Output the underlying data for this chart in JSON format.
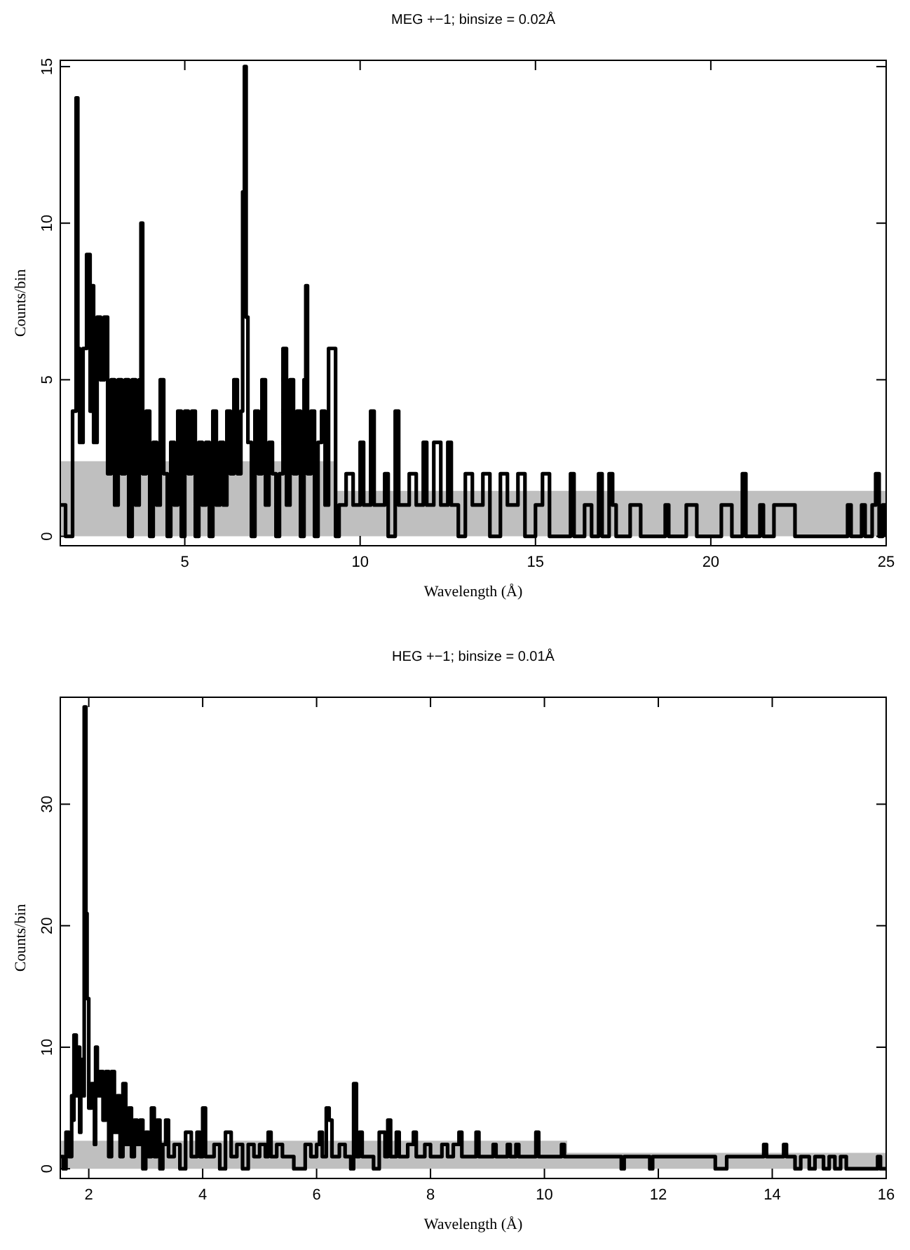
{
  "chart_data": [
    {
      "type": "step",
      "title": "MEG +−1; binsize = 0.02Å",
      "xlabel": "Wavelength (Å)",
      "ylabel": "Counts/bin",
      "xlim": [
        1.45,
        25
      ],
      "ylim": [
        -0.3,
        15.2
      ],
      "xticks": [
        5,
        10,
        15,
        20,
        25
      ],
      "yticks": [
        0,
        5,
        10,
        15
      ],
      "series": [
        {
          "type": "area",
          "color": "#bfbfbf",
          "x": [
            1.45,
            9.3,
            9.3,
            25
          ],
          "values": [
            2.4,
            2.4,
            1.45,
            1.45
          ]
        },
        {
          "color": "#000000",
          "x": [
            1.45,
            1.6,
            1.75,
            1.8,
            1.9,
            1.95,
            2.0,
            2.1,
            2.2,
            2.3,
            2.35,
            2.4,
            2.5,
            2.6,
            2.7,
            2.8,
            2.9,
            3.0,
            3.1,
            3.2,
            3.3,
            3.4,
            3.5,
            3.6,
            3.7,
            3.75,
            3.8,
            3.9,
            4.0,
            4.1,
            4.2,
            4.3,
            4.4,
            4.5,
            4.6,
            4.7,
            4.8,
            4.9,
            5.0,
            5.1,
            5.2,
            5.3,
            5.4,
            5.5,
            5.6,
            5.7,
            5.8,
            5.9,
            6.0,
            6.1,
            6.2,
            6.3,
            6.4,
            6.5,
            6.6,
            6.65,
            6.7,
            6.75,
            6.8,
            6.9,
            7.0,
            7.1,
            7.2,
            7.3,
            7.4,
            7.5,
            7.6,
            7.7,
            7.8,
            7.9,
            8.0,
            8.1,
            8.2,
            8.3,
            8.4,
            8.45,
            8.5,
            8.6,
            8.7,
            8.8,
            8.9,
            9.0,
            9.1,
            9.25,
            9.3,
            9.4,
            9.6,
            9.8,
            10.0,
            10.1,
            10.3,
            10.4,
            10.7,
            10.8,
            11.0,
            11.1,
            11.4,
            11.6,
            11.8,
            11.9,
            12.1,
            12.3,
            12.5,
            12.6,
            12.8,
            13.0,
            13.2,
            13.5,
            13.7,
            14.0,
            14.2,
            14.5,
            14.7,
            15.0,
            15.2,
            15.4,
            16.0,
            16.1,
            16.4,
            16.6,
            16.8,
            16.9,
            17.1,
            17.2,
            17.3,
            17.7,
            18.0,
            18.7,
            18.8,
            19.3,
            19.6,
            20.3,
            20.6,
            20.9,
            21.0,
            21.4,
            21.5,
            21.8,
            22.4,
            23.9,
            24.0,
            24.3,
            24.4,
            24.6,
            24.7,
            24.8,
            24.9,
            25.0
          ],
          "values": [
            1,
            0,
            0,
            4,
            14,
            6,
            3,
            6,
            9,
            4,
            8,
            3,
            7,
            5,
            7,
            2,
            5,
            1,
            5,
            2,
            5,
            0,
            5,
            1,
            5,
            10,
            2,
            4,
            0,
            3,
            1,
            5,
            2,
            0,
            3,
            1,
            4,
            0,
            4,
            2,
            4,
            0,
            3,
            1,
            3,
            0,
            4,
            1,
            3,
            1,
            4,
            2,
            5,
            2,
            4,
            11,
            15,
            7,
            3,
            0,
            4,
            2,
            5,
            1,
            3,
            2,
            0,
            2,
            6,
            1,
            5,
            2,
            4,
            0,
            5,
            8,
            2,
            4,
            0,
            3,
            4,
            1,
            6,
            6,
            0,
            1,
            2,
            1,
            3,
            1,
            4,
            1,
            2,
            0,
            4,
            1,
            2,
            1,
            3,
            1,
            3,
            1,
            3,
            1,
            0,
            2,
            1,
            2,
            0,
            2,
            1,
            2,
            0,
            1,
            2,
            0,
            2,
            0,
            1,
            0,
            2,
            0,
            2,
            1,
            0,
            1,
            0,
            1,
            0,
            1,
            0,
            1,
            0,
            2,
            0,
            1,
            0,
            1,
            0,
            1,
            0,
            1,
            0,
            1,
            2,
            0,
            1,
            0
          ]
        }
      ]
    },
    {
      "type": "step",
      "title": "HEG +−1; binsize = 0.01Å",
      "xlabel": "Wavelength (Å)",
      "ylabel": "Counts/bin",
      "xlim": [
        1.5,
        16
      ],
      "ylim": [
        -0.8,
        38.8
      ],
      "xticks": [
        2,
        4,
        6,
        8,
        10,
        12,
        14,
        16
      ],
      "yticks": [
        0,
        10,
        20,
        30
      ],
      "series": [
        {
          "type": "area",
          "color": "#bfbfbf",
          "x": [
            1.5,
            10.4,
            10.4,
            16
          ],
          "values": [
            2.3,
            2.3,
            1.3,
            1.3
          ]
        },
        {
          "color": "#000000",
          "x": [
            1.5,
            1.55,
            1.6,
            1.65,
            1.7,
            1.72,
            1.74,
            1.78,
            1.8,
            1.84,
            1.86,
            1.9,
            1.92,
            1.95,
            1.97,
            2.0,
            2.05,
            2.1,
            2.12,
            2.15,
            2.2,
            2.25,
            2.3,
            2.35,
            2.4,
            2.45,
            2.5,
            2.55,
            2.6,
            2.65,
            2.7,
            2.75,
            2.8,
            2.85,
            2.9,
            2.95,
            3.0,
            3.05,
            3.1,
            3.15,
            3.2,
            3.25,
            3.3,
            3.35,
            3.4,
            3.5,
            3.6,
            3.7,
            3.8,
            3.9,
            3.95,
            4.0,
            4.05,
            4.2,
            4.3,
            4.4,
            4.5,
            4.6,
            4.7,
            4.8,
            4.9,
            5.0,
            5.1,
            5.15,
            5.2,
            5.3,
            5.4,
            5.6,
            5.8,
            5.9,
            6.0,
            6.05,
            6.1,
            6.17,
            6.22,
            6.27,
            6.4,
            6.5,
            6.6,
            6.65,
            6.7,
            6.75,
            6.8,
            7.0,
            7.1,
            7.2,
            7.25,
            7.3,
            7.4,
            7.45,
            7.6,
            7.7,
            7.75,
            7.9,
            8.0,
            8.2,
            8.3,
            8.4,
            8.5,
            8.55,
            8.8,
            8.85,
            9.1,
            9.15,
            9.35,
            9.4,
            9.5,
            9.55,
            9.85,
            9.9,
            10.3,
            10.35,
            11.35,
            11.4,
            11.85,
            11.9,
            13.0,
            13.2,
            13.85,
            13.9,
            14.2,
            14.25,
            14.4,
            14.5,
            14.65,
            14.75,
            14.9,
            15.0,
            15.1,
            15.2,
            15.3,
            15.85,
            15.9,
            16.0
          ],
          "values": [
            1,
            0,
            3,
            1,
            6,
            4,
            11,
            6,
            10,
            3,
            9,
            6,
            38,
            21,
            14,
            5,
            7,
            2,
            10,
            6,
            8,
            4,
            8,
            1,
            8,
            3,
            6,
            1,
            7,
            2,
            5,
            1,
            4,
            2,
            4,
            0,
            3,
            1,
            5,
            1,
            4,
            0,
            2,
            4,
            1,
            2,
            0,
            3,
            1,
            3,
            1,
            5,
            1,
            2,
            0,
            3,
            1,
            2,
            0,
            2,
            1,
            2,
            1,
            3,
            1,
            2,
            1,
            0,
            2,
            1,
            2,
            3,
            1,
            5,
            4,
            1,
            2,
            1,
            0,
            7,
            1,
            3,
            1,
            0,
            3,
            1,
            4,
            1,
            3,
            1,
            2,
            3,
            1,
            2,
            1,
            2,
            1,
            2,
            3,
            1,
            3,
            1,
            2,
            1,
            2,
            1,
            2,
            1,
            3,
            1,
            2,
            1,
            0,
            1,
            0,
            1,
            0,
            1,
            2,
            1,
            2,
            1,
            0,
            1,
            0,
            1,
            0,
            1,
            0,
            1,
            0,
            1,
            0,
            0
          ]
        }
      ]
    }
  ]
}
